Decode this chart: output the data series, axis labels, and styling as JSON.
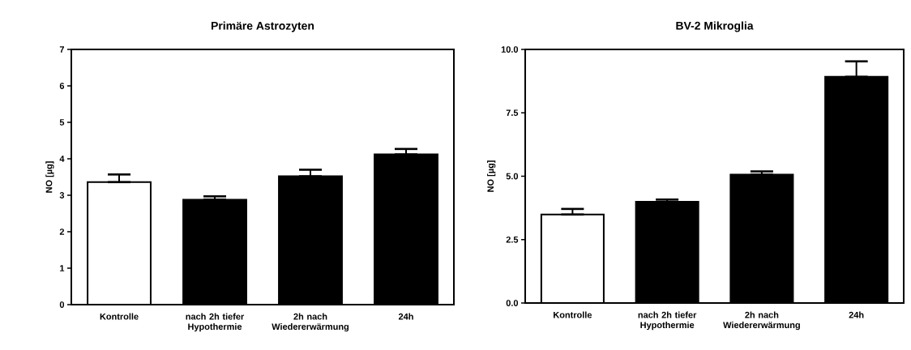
{
  "chart_data": [
    {
      "type": "bar",
      "title": "Primäre Astrozyten",
      "ylabel": "NO [µg]",
      "categories": [
        "Kontrolle",
        "nach 2h tiefer Hypothermie",
        "2h nach Wiedererwärmung",
        "24h"
      ],
      "values": [
        3.36,
        2.88,
        3.52,
        4.12
      ],
      "colors": [
        "#ffffff",
        "#000000",
        "#000000",
        "#000000"
      ],
      "errors": [
        [
          3.36,
          3.57
        ],
        [
          2.88,
          2.97
        ],
        [
          3.52,
          3.7
        ],
        [
          4.12,
          4.27
        ]
      ],
      "ylim": [
        0,
        7
      ],
      "yticks": [
        0,
        1,
        2,
        3,
        4,
        5,
        6,
        7
      ]
    },
    {
      "type": "bar",
      "title": "BV-2 Mikroglia",
      "ylabel": "NO [µg]",
      "categories": [
        "Kontrolle",
        "nach 2h tiefer Hypothermie",
        "2h nach Wiedererwärmung",
        "24h"
      ],
      "values": [
        3.49,
        3.99,
        5.06,
        8.92
      ],
      "colors": [
        "#ffffff",
        "#000000",
        "#000000",
        "#000000"
      ],
      "errors": [
        [
          3.49,
          3.71
        ],
        [
          3.99,
          4.08
        ],
        [
          5.06,
          5.19
        ],
        [
          8.92,
          9.53
        ]
      ],
      "ylim": [
        0,
        10
      ],
      "yticks": [
        {
          "value": 0,
          "label": "0.0"
        },
        {
          "value": 2.5,
          "label": "2.5"
        },
        {
          "value": 5,
          "label": "5.0"
        },
        {
          "value": 7.5,
          "label": "7.5"
        },
        {
          "value": 10,
          "label": "10.0"
        }
      ]
    }
  ]
}
